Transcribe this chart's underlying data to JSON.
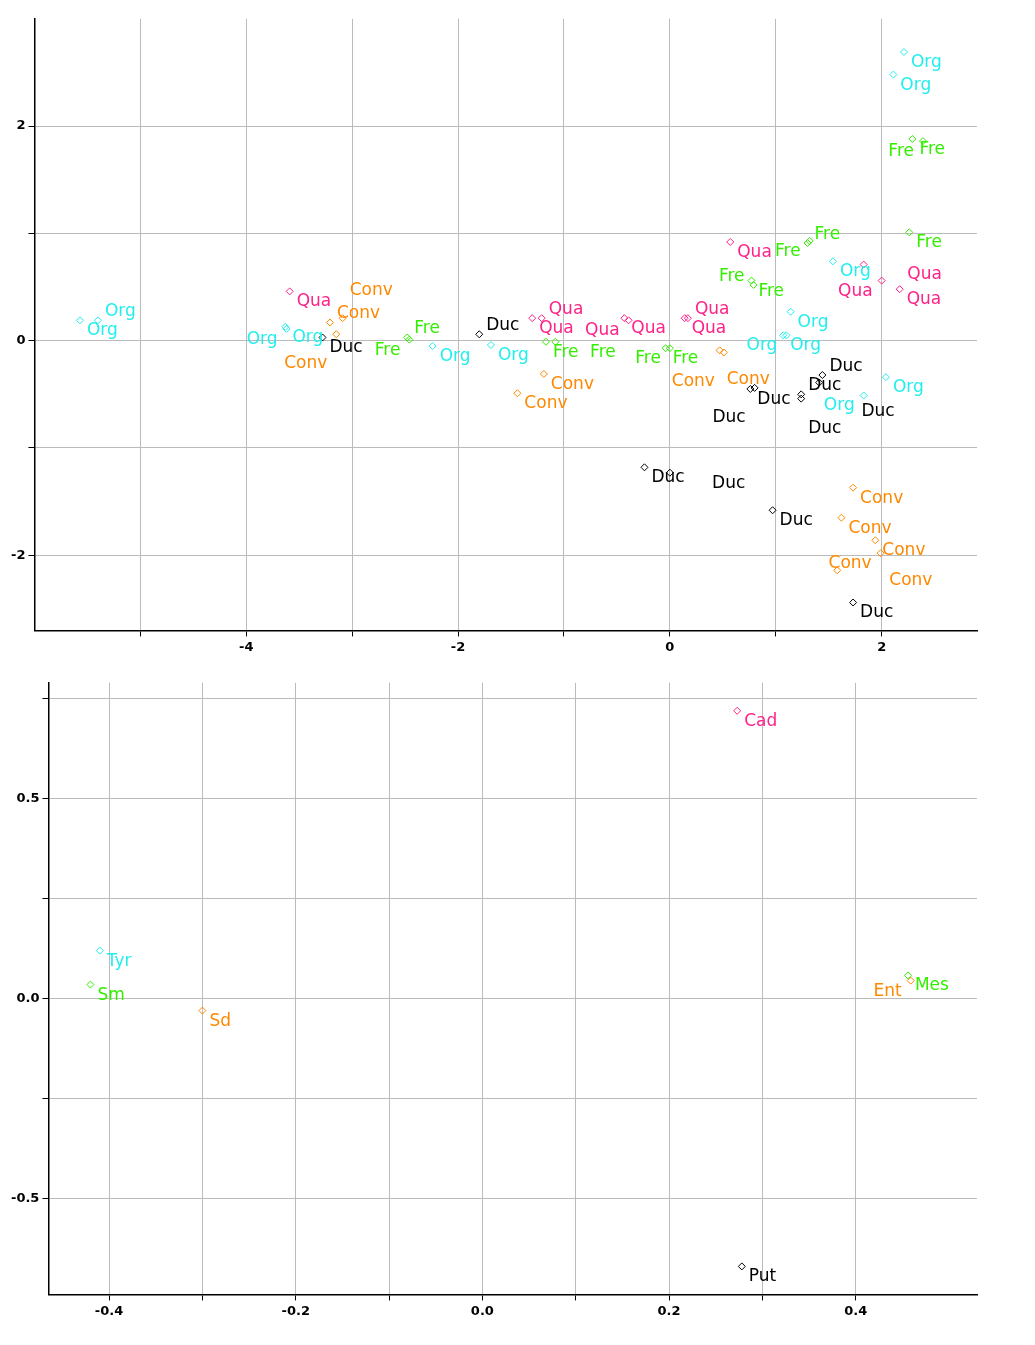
{
  "chart_data": [
    {
      "type": "scatter",
      "marker": "diamond",
      "grid": true,
      "xlim": [
        -6,
        2.9
      ],
      "ylim": [
        -2.7,
        3
      ],
      "xticks": [
        {
          "value": -5,
          "label": null
        },
        -4,
        {
          "value": -3,
          "label": null
        },
        -2,
        {
          "value": -1,
          "label": null
        },
        0,
        {
          "value": 1,
          "label": null
        },
        2
      ],
      "yticks": [
        -2,
        {
          "value": -1,
          "label": null
        },
        0,
        {
          "value": 1,
          "label": null
        },
        2
      ],
      "series": [
        {
          "name": "Org",
          "color": "#22eeee",
          "x": [
            2.21,
            2.11,
            -5.57,
            -5.4,
            -3.63,
            -3.62,
            -2.24,
            -1.69,
            1.14,
            1.07,
            1.1,
            2.04,
            1.83,
            1.54
          ],
          "values": [
            2.69,
            2.48,
            0.19,
            0.19,
            0.13,
            0.11,
            -0.05,
            -0.04,
            0.27,
            0.05,
            0.05,
            -0.34,
            -0.51,
            0.74
          ]
        },
        {
          "name": "Qua",
          "color": "#ff2288",
          "x": [
            -3.59,
            0.57,
            1.83,
            2.0,
            2.17,
            -1.3,
            -1.21,
            -0.43,
            -0.39,
            0.14,
            0.17
          ],
          "values": [
            0.46,
            0.92,
            0.71,
            0.56,
            0.48,
            0.21,
            0.21,
            0.21,
            0.19,
            0.21,
            0.21
          ]
        },
        {
          "name": "Fre",
          "color": "#33ee00",
          "x": [
            2.29,
            2.39,
            2.26,
            1.3,
            1.32,
            0.77,
            0.79,
            -2.48,
            -2.46,
            -1.17,
            -1.08,
            -0.04,
            0
          ],
          "values": [
            1.88,
            1.86,
            1.01,
            0.91,
            0.93,
            0.56,
            0.52,
            0.03,
            0.01,
            -0.01,
            -0.01,
            -0.07,
            -0.07
          ]
        },
        {
          "name": "Conv",
          "color": "#ff8800",
          "x": [
            -3.21,
            -3.09,
            -3.15,
            -1.19,
            -1.44,
            0.47,
            0.51,
            1.73,
            1.62,
            1.94,
            1.99,
            1.58
          ],
          "values": [
            0.17,
            0.21,
            0.06,
            -0.31,
            -0.49,
            -0.09,
            -0.11,
            -1.37,
            -1.65,
            -1.86,
            -1.98,
            -2.14
          ]
        },
        {
          "name": "Duc",
          "color": "#000000",
          "x": [
            -3.28,
            -1.8,
            0.76,
            0.8,
            1.24,
            1.24,
            1.44,
            1.41,
            -0.24,
            0,
            0.97,
            1.73
          ],
          "values": [
            0.03,
            0.06,
            -0.45,
            -0.44,
            -0.5,
            -0.54,
            -0.32,
            -0.39,
            -1.18,
            -1.23,
            -1.58,
            -2.44
          ]
        }
      ]
    },
    {
      "type": "scatter",
      "marker": "diamond",
      "grid": true,
      "xlim": [
        -0.465,
        0.53
      ],
      "ylim": [
        -0.74,
        0.79
      ],
      "xticks": [
        -0.4,
        {
          "value": -0.3,
          "label": null
        },
        -0.2,
        {
          "value": -0.1,
          "label": null
        },
        {
          "value": 0,
          "label": "0.0"
        },
        {
          "value": 0.1,
          "label": null
        },
        0.2,
        {
          "value": 0.3,
          "label": null
        },
        0.4
      ],
      "yticks": [
        -0.5,
        {
          "value": -0.25,
          "label": null
        },
        {
          "value": 0,
          "label": "0.0"
        },
        {
          "value": 0.25,
          "label": null
        },
        0.5,
        {
          "value": 0.75,
          "label": null
        }
      ],
      "series": [
        {
          "name": "Cad",
          "color": "#ff2288",
          "x": [
            0.273
          ],
          "values": [
            0.72
          ]
        },
        {
          "name": "Tyr",
          "color": "#22eeee",
          "x": [
            -0.41
          ],
          "values": [
            0.12
          ]
        },
        {
          "name": "Sm",
          "color": "#33ee00",
          "x": [
            -0.42
          ],
          "values": [
            0.035
          ]
        },
        {
          "name": "Sd",
          "color": "#ff8800",
          "x": [
            -0.3
          ],
          "values": [
            -0.03
          ]
        },
        {
          "name": "Mes",
          "color": "#33ee00",
          "x": [
            0.456
          ],
          "values": [
            0.058
          ]
        },
        {
          "name": "Ent",
          "color": "#ff8800",
          "x": [
            0.459
          ],
          "values": [
            0.045
          ]
        },
        {
          "name": "Put",
          "color": "#000000",
          "x": [
            0.278
          ],
          "values": [
            -0.67
          ]
        }
      ]
    }
  ]
}
